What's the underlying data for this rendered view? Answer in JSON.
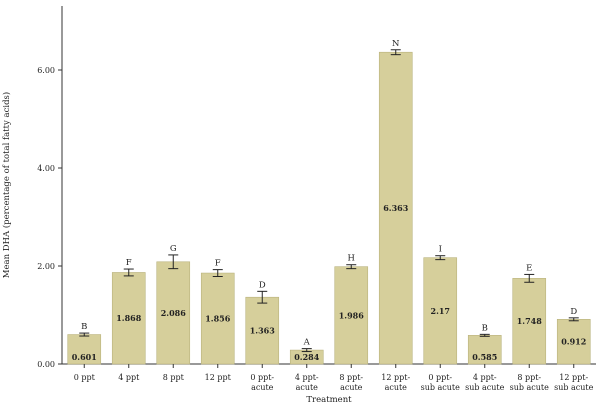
{
  "chart_data": {
    "type": "bar",
    "xlabel": "Treatment",
    "ylabel": "Mean DHA (percentage of total fatty acids)",
    "ylim": [
      0,
      7.3
    ],
    "yticks": [
      "0.00",
      "2.00",
      "4.00",
      "6.00"
    ],
    "ytick_values": [
      0,
      2,
      4,
      6
    ],
    "grid": false,
    "bar_color": "#d6cf9b",
    "bar_edge_color": "#b9b27c",
    "categories": [
      [
        "0 ppt"
      ],
      [
        "4 ppt"
      ],
      [
        "8 ppt"
      ],
      [
        "12 ppt"
      ],
      [
        "0 ppt-",
        "acute"
      ],
      [
        "4 ppt-",
        "acute"
      ],
      [
        "8 ppt-",
        "acute"
      ],
      [
        "12 ppt-",
        "acute"
      ],
      [
        "0 ppt-",
        "sub acute"
      ],
      [
        "4 ppt-",
        "sub acute"
      ],
      [
        "8 ppt-",
        "sub acute"
      ],
      [
        "12 ppt-",
        "sub acute"
      ]
    ],
    "values": [
      0.601,
      1.868,
      2.086,
      1.856,
      1.363,
      0.284,
      1.986,
      6.363,
      2.17,
      0.585,
      1.748,
      0.912
    ],
    "value_labels": [
      "0.601",
      "1.868",
      "2.086",
      "1.856",
      "1.363",
      "0.284",
      "1.986",
      "6.363",
      "2.17",
      "0.585",
      "1.748",
      "0.912"
    ],
    "errors": [
      0.03,
      0.07,
      0.14,
      0.07,
      0.12,
      0.03,
      0.04,
      0.05,
      0.04,
      0.02,
      0.08,
      0.03
    ],
    "group_letters": [
      "B",
      "F",
      "G",
      "F",
      "D",
      "A",
      "H",
      "N",
      "I",
      "B",
      "E",
      "D"
    ]
  }
}
